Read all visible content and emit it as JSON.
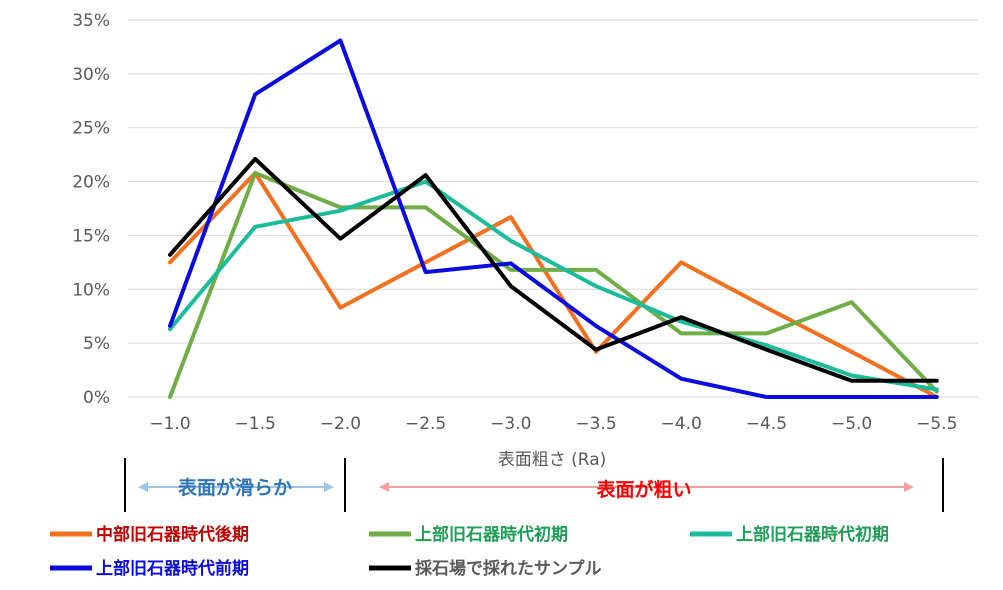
{
  "chart_data": {
    "type": "line",
    "title": "",
    "xlabel": "表面粗さ (Ra)",
    "ylabel": "",
    "x": [
      "−1.0",
      "−1.5",
      "−2.0",
      "−2.5",
      "−3.0",
      "−3.5",
      "−4.0",
      "−4.5",
      "−5.0",
      "−5.5"
    ],
    "ylim": [
      0,
      35
    ],
    "yticks": [
      "0%",
      "5%",
      "10%",
      "15%",
      "20%",
      "25%",
      "30%",
      "35%"
    ],
    "grid": "horizontal",
    "legend_position": "bottom",
    "series": [
      {
        "name": "中部旧石器時代後期",
        "color": "#F4701F",
        "label_color": "#C00000",
        "values": [
          12.5,
          20.8,
          8.3,
          12.5,
          16.7,
          4.2,
          12.5,
          8.3,
          4.2,
          0
        ]
      },
      {
        "name": "上部旧石器時代初期",
        "color": "#70AD47",
        "label_color": "#1E9E57",
        "values": [
          0,
          20.8,
          17.6,
          17.6,
          11.8,
          11.8,
          5.9,
          5.9,
          8.8,
          0.5
        ]
      },
      {
        "name": "上部旧石器時代初期",
        "color": "#1ABC9C",
        "label_color": "#1E9E57",
        "values": [
          6.3,
          15.8,
          17.3,
          20.0,
          14.5,
          10.3,
          7.0,
          4.8,
          2.0,
          0.7
        ]
      },
      {
        "name": "上部旧石器時代前期",
        "color": "#0B0BE0",
        "label_color": "#0B0BE0",
        "values": [
          6.6,
          28.1,
          33.1,
          11.6,
          12.4,
          6.6,
          1.7,
          0,
          0,
          0
        ]
      },
      {
        "name": "採石場で採れたサンプル",
        "color": "#000000",
        "label_color": "#595959",
        "values": [
          13.2,
          22.1,
          14.7,
          20.6,
          10.3,
          4.4,
          7.4,
          4.4,
          1.5,
          1.5
        ]
      }
    ],
    "annotations": {
      "smooth": {
        "text": "表面が滑らか",
        "color": "#2E75B6",
        "arrow_color": "#9DC3E6"
      },
      "rough": {
        "text": "表面が粗い",
        "color": "#FF0000",
        "arrow_color": "#F4A0A0"
      }
    }
  }
}
